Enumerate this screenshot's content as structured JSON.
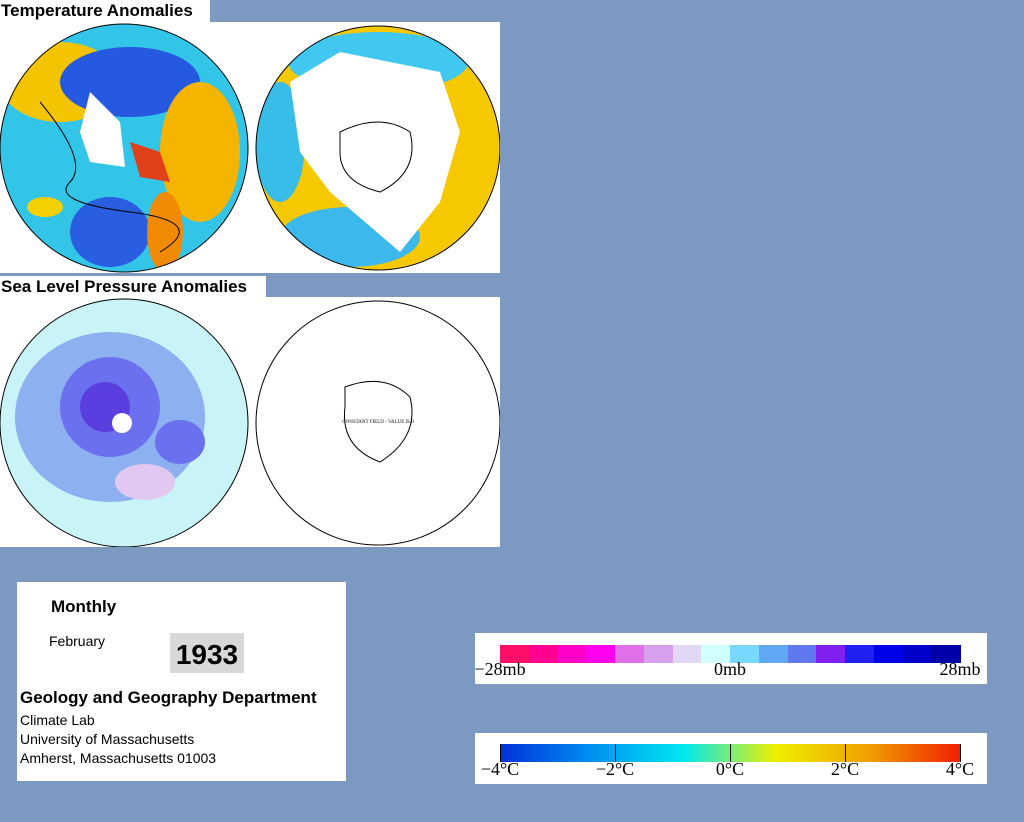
{
  "temperature": {
    "title": "Temperature Anomalies"
  },
  "pressure": {
    "title": "Sea Level Pressure Anomalies",
    "note": "CONSTANT FIELD - VALUE IS 0"
  },
  "info": {
    "period": "Monthly",
    "month": "February",
    "year": "1933",
    "department": "Geology and Geography Department",
    "lines": [
      "Climate Lab",
      "University of Massachusetts",
      "Amherst, Massachusetts 01003"
    ]
  },
  "pressure_scale": {
    "colors": [
      "#ff1068",
      "#ff0090",
      "#ff00c8",
      "#ff00f0",
      "#e070e8",
      "#d8a0ec",
      "#e0d8f4",
      "#d0ffff",
      "#78d8ff",
      "#60a8f4",
      "#6078f0",
      "#8020f0",
      "#2020f0",
      "#0000e8",
      "#0000c8",
      "#0000a8"
    ],
    "labels": [
      "−28mb",
      "0mb",
      "28mb"
    ]
  },
  "temperature_scale": {
    "colors": [
      "#0030d8",
      "#0090f0",
      "#00e8f0",
      "#f0f000",
      "#f0a000",
      "#f02000"
    ],
    "labels": [
      "−4°C",
      "−2°C",
      "0°C",
      "2°C",
      "4°C"
    ]
  }
}
